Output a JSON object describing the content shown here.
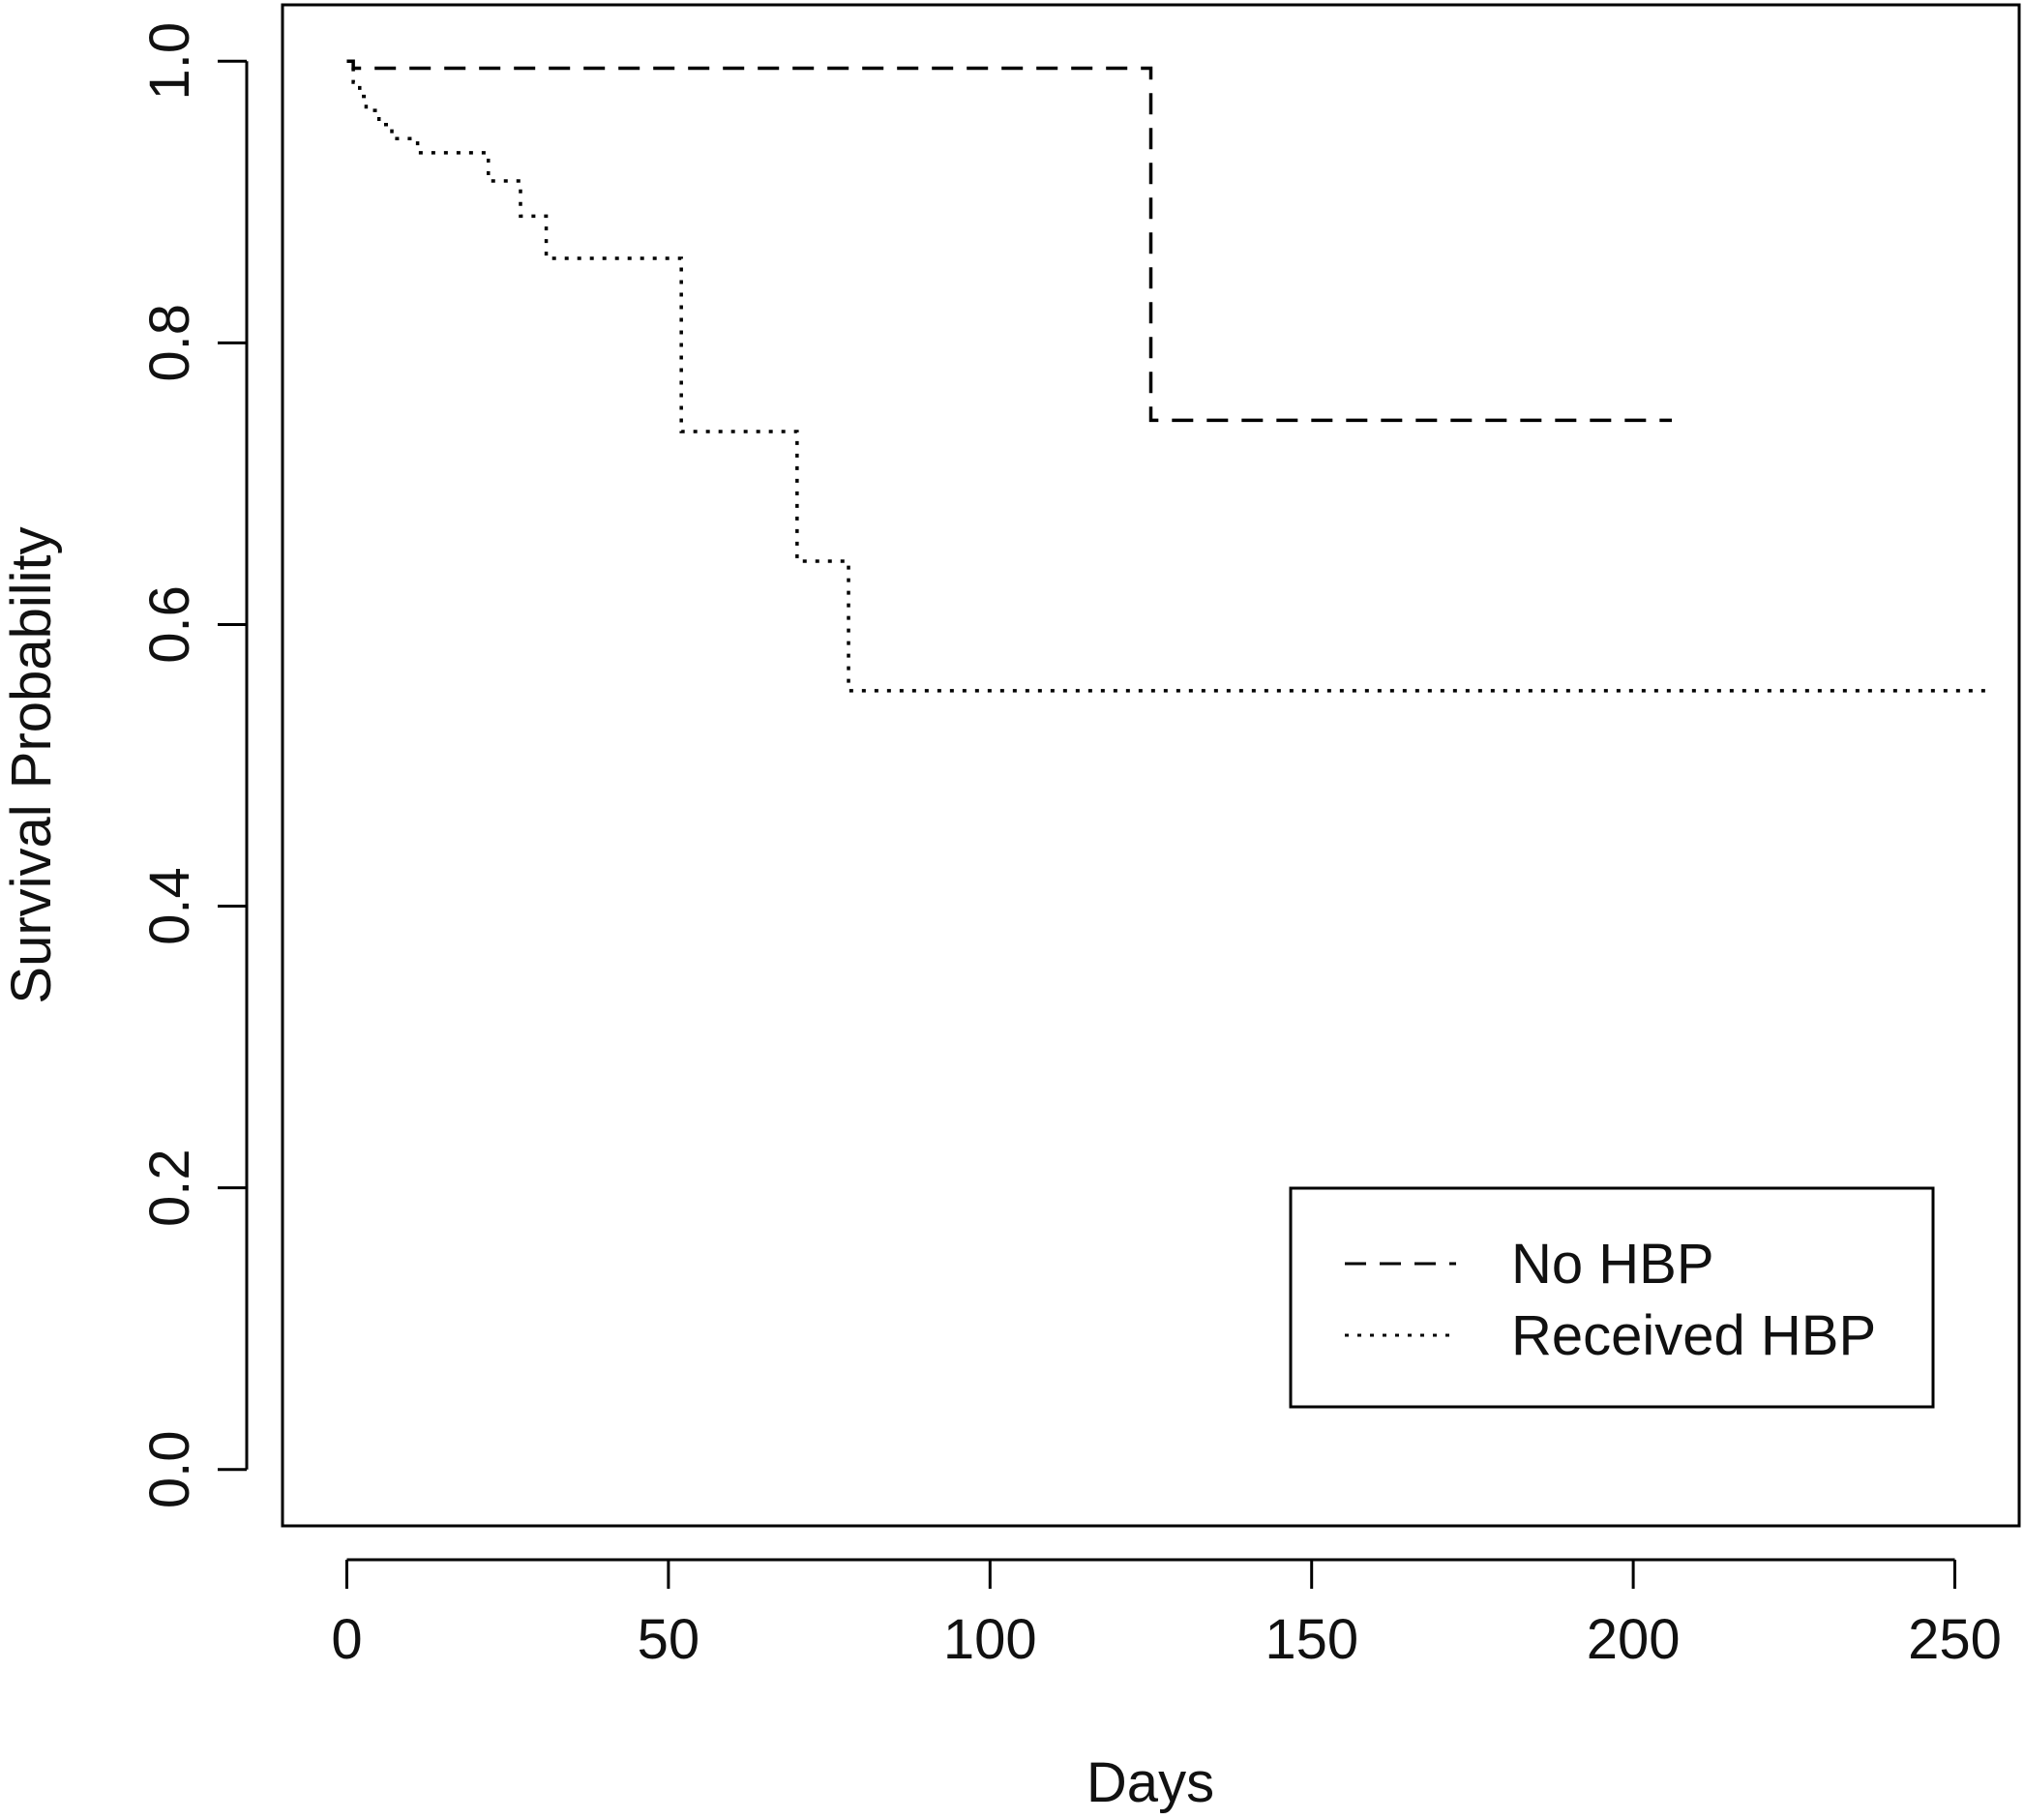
{
  "chart_data": {
    "type": "line",
    "subtype": "kaplan-meier step",
    "xlabel": "Days",
    "ylabel": "Survival Probability",
    "xlim": [
      -10,
      260
    ],
    "ylim": [
      -0.04,
      1.04
    ],
    "x_ticks": [
      "0",
      "50",
      "100",
      "150",
      "200",
      "250"
    ],
    "y_ticks": [
      "0.0",
      "0.2",
      "0.4",
      "0.6",
      "0.8",
      "1.0"
    ],
    "grid": false,
    "legend_position": "bottom-right",
    "line_color": "#000000",
    "series": [
      {
        "name": "No HBP",
        "line_style": "dashed",
        "steps": [
          [
            0,
            1.0
          ],
          [
            1,
            0.995
          ],
          [
            125,
            0.745
          ],
          [
            206,
            0.745
          ]
        ]
      },
      {
        "name": "Received HBP",
        "line_style": "dotted",
        "steps": [
          [
            0,
            1.0
          ],
          [
            1,
            0.985
          ],
          [
            2,
            0.975
          ],
          [
            3,
            0.965
          ],
          [
            5,
            0.955
          ],
          [
            7,
            0.945
          ],
          [
            11,
            0.935
          ],
          [
            22,
            0.915
          ],
          [
            27,
            0.89
          ],
          [
            31,
            0.86
          ],
          [
            52,
            0.737
          ],
          [
            70,
            0.645
          ],
          [
            78,
            0.553
          ],
          [
            255,
            0.553
          ]
        ]
      }
    ]
  }
}
